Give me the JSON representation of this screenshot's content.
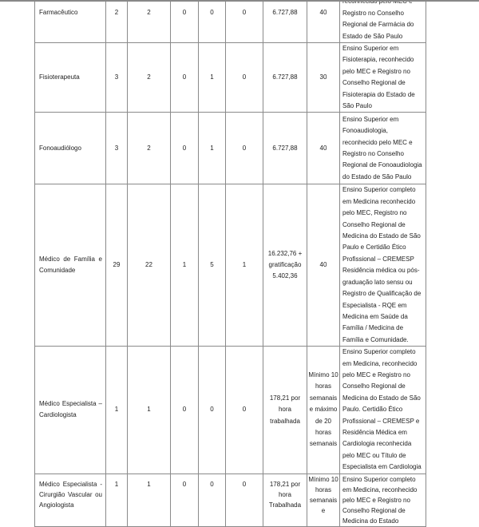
{
  "rows": [
    {
      "role": "Farmacêutico",
      "c1": "2",
      "c2": "2",
      "c3": "0",
      "c4": "0",
      "c5": "0",
      "salary": "6.727,88",
      "hours": "40",
      "requirements": "reconhecido pelo MEC e Registro no Conselho Regional de Farmácia do Estado de São Paulo"
    },
    {
      "role": "Fisioterapeuta",
      "c1": "3",
      "c2": "2",
      "c3": "0",
      "c4": "1",
      "c5": "0",
      "salary": "6.727,88",
      "hours": "30",
      "requirements": "Ensino Superior em Fisioterapia, reconhecido pelo MEC e Registro no Conselho Regional de Fisioterapia do Estado de São Paulo"
    },
    {
      "role": "Fonoaudiólogo",
      "c1": "3",
      "c2": "2",
      "c3": "0",
      "c4": "1",
      "c5": "0",
      "salary": "6.727,88",
      "hours": "40",
      "requirements": "Ensino Superior em Fonoaudiologia, reconhecido pelo MEC e Registro no Conselho Regional de Fonoaudiologia do Estado de São Paulo"
    },
    {
      "role": "Médico de Família e Comunidade",
      "c1": "29",
      "c2": "22",
      "c3": "1",
      "c4": "5",
      "c5": "1",
      "salary": "16.232,76 + gratificação 5.402,36",
      "hours": "40",
      "requirements": "Ensino Superior completo em Medicina reconhecido pelo MEC, Registro no Conselho Regional de Medicina do Estado de São Paulo e Certidão Ético Profissional – CREMESP Residência médica ou pós-graduação lato sensu ou Registro de Qualificação de Especialista - RQE em Medicina em Saúde da Família / Medicina de Família e Comunidade."
    },
    {
      "role": "Médico Especialista – Cardiologista",
      "c1": "1",
      "c2": "1",
      "c3": "0",
      "c4": "0",
      "c5": "0",
      "salary": "178,21 por hora trabalhada",
      "hours": "Mínimo 10 horas semanais e máximo de 20 horas semanais",
      "requirements": "Ensino Superior completo em Medicina, reconhecido pelo MEC e Registro no Conselho Regional de Medicina do Estado de São Paulo. Certidão Ético Profissional – CREMESP e Residência Médica em Cardiologia reconhecida pelo MEC ou Título de Especialista em Cardiologia"
    },
    {
      "role": "Médico Especialista - Cirurgião Vascular ou Angiologista",
      "c1": "1",
      "c2": "1",
      "c3": "0",
      "c4": "0",
      "c5": "0",
      "salary": "178,21 por hora Trabalhada",
      "hours": "Mínimo 10 horas semanais e",
      "requirements": "Ensino Superior completo em Medicina, reconhecido pelo MEC e Registro no Conselho Regional de Medicina do Estado"
    }
  ]
}
